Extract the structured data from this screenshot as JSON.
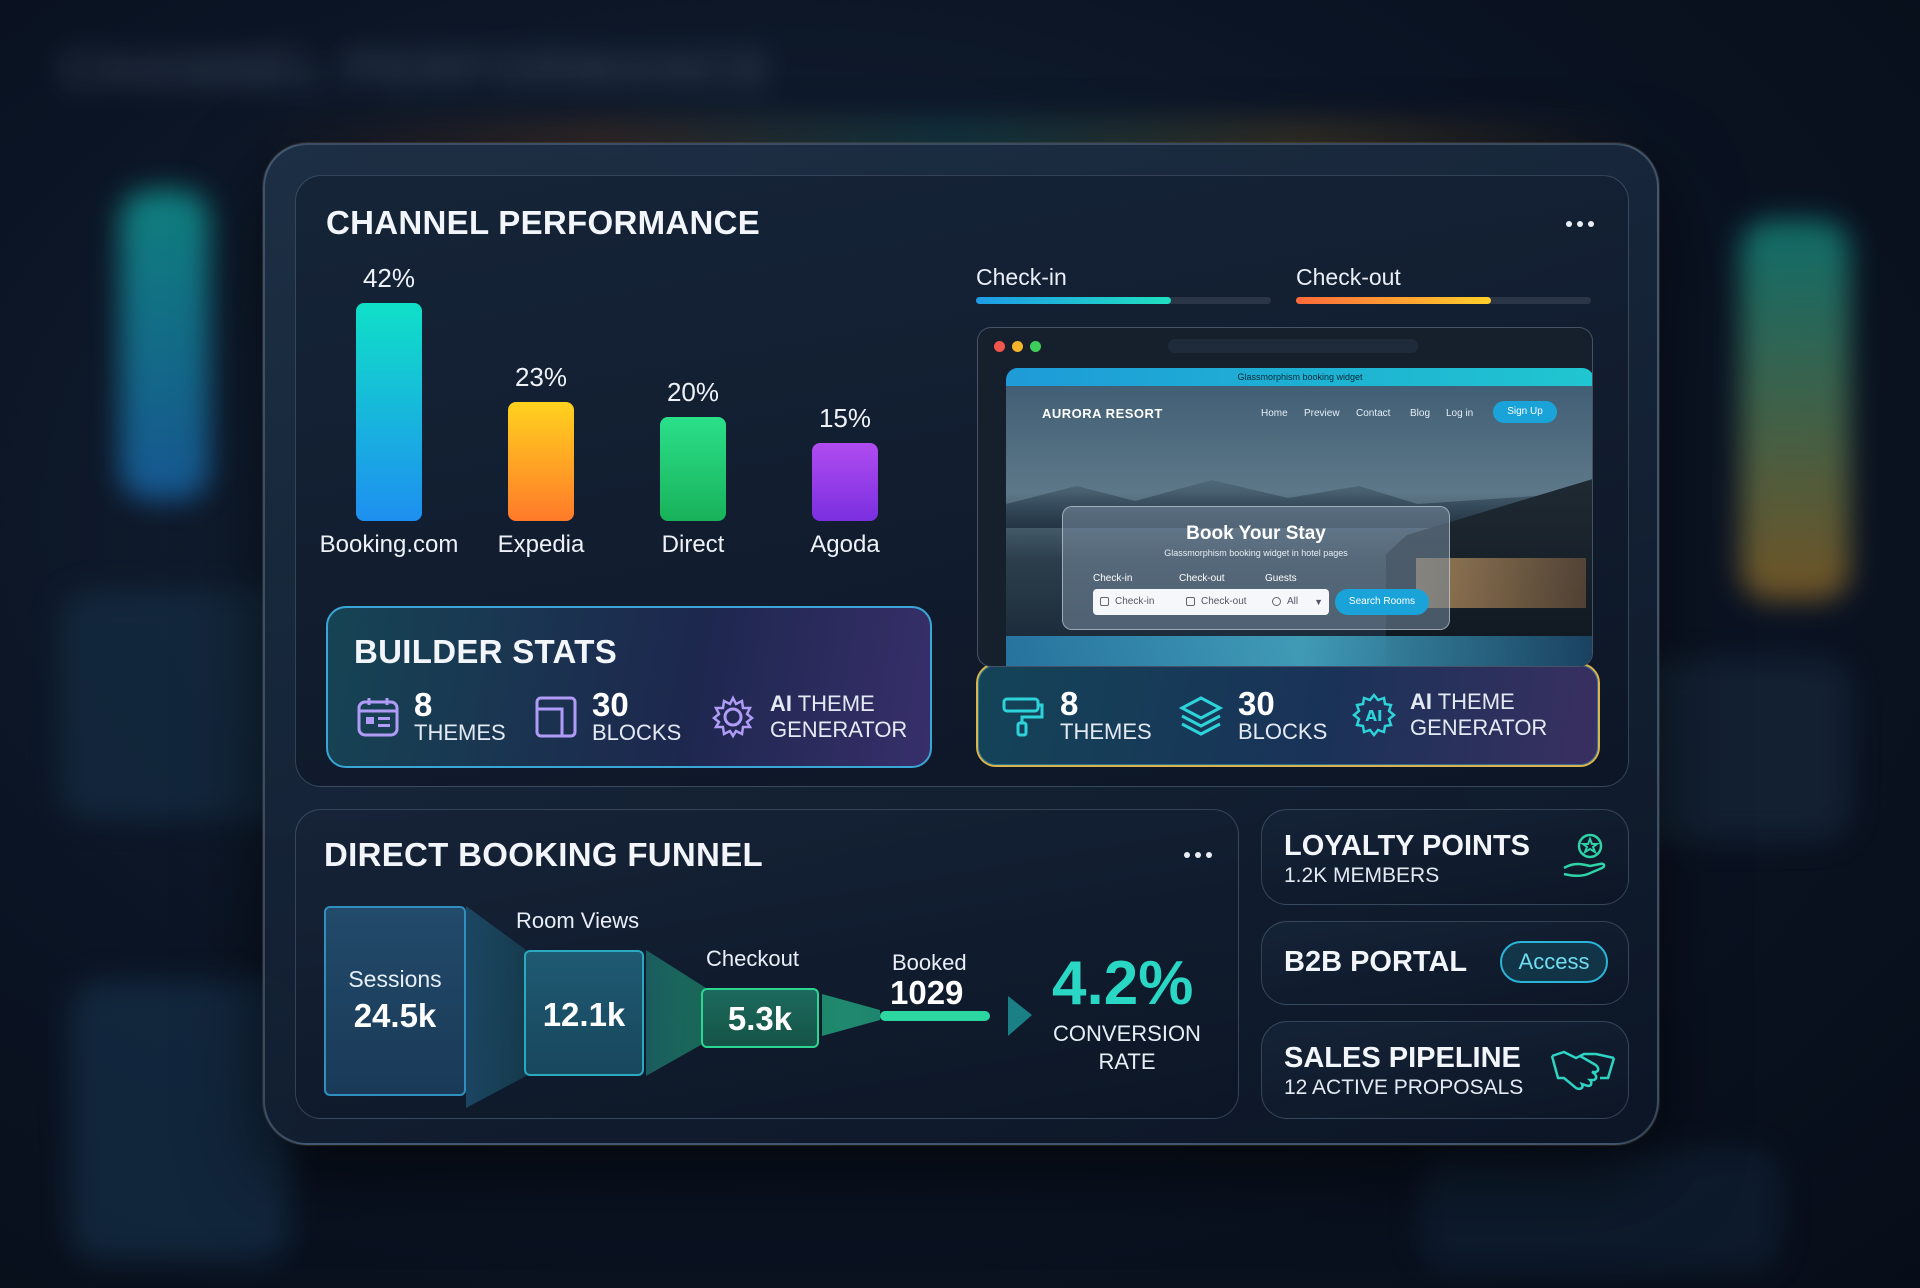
{
  "channel": {
    "title": "CHANNEL PERFORMANCE"
  },
  "chart_data": {
    "type": "bar",
    "categories": [
      "Booking.com",
      "Expedia",
      "Direct",
      "Agoda"
    ],
    "values": [
      42,
      23,
      20,
      15
    ],
    "value_labels": [
      "42%",
      "23%",
      "20%",
      "15%"
    ],
    "ylim": [
      0,
      42
    ],
    "colors": [
      [
        "#10e0c8",
        "#1e8ff0"
      ],
      [
        "#ffd21e",
        "#ff7a2a"
      ],
      [
        "#2be08a",
        "#18b25a"
      ],
      [
        "#b04cf0",
        "#7a2fe0"
      ]
    ]
  },
  "progress": {
    "checkin": {
      "label": "Check-in",
      "value": 0.66,
      "colors": [
        "#1e9be8",
        "#20e0c0"
      ]
    },
    "checkout": {
      "label": "Check-out",
      "value": 0.66,
      "colors": [
        "#ff6a3a",
        "#ffcf2a"
      ]
    }
  },
  "builder_stats": {
    "title": "BUILDER STATS",
    "themes_num": "8",
    "themes_label": "THEMES",
    "blocks_num": "30",
    "blocks_label": "BLOCKS",
    "ai_bold": "AI",
    "ai_rest": "THEME",
    "ai_line2": "GENERATOR"
  },
  "builder_stats_2": {
    "themes_num": "8",
    "themes_label": "THEMES",
    "blocks_num": "30",
    "blocks_label": "BLOCKS",
    "ai_bold": "AI",
    "ai_rest": "THEME",
    "ai_line2": "GENERATOR"
  },
  "site": {
    "topbar": "Glassmorphism booking widget",
    "logo": "AURORA RESORT",
    "nav": [
      "Home",
      "Preview",
      "Contact",
      "Blog",
      "Log in"
    ],
    "signup": "Sign Up",
    "widget_title": "Book Your Stay",
    "widget_sub": "Glassmorphism booking widget in hotel pages",
    "checkin_label": "Check-in",
    "checkin_ph": "Check-in",
    "checkout_label": "Check-out",
    "checkout_ph": "Check-out",
    "guests_label": "Guests",
    "guests_value": "All",
    "search_btn": "Search Rooms"
  },
  "funnel": {
    "title": "DIRECT BOOKING FUNNEL",
    "sessions_label": "Sessions",
    "sessions_value": "24.5k",
    "views_label": "Room Views",
    "views_value": "12.1k",
    "checkout_label": "Checkout",
    "checkout_value": "5.3k",
    "booked_label": "Booked",
    "booked_value": "1029",
    "rate_value": "4.2%",
    "rate_label1": "CONVERSION",
    "rate_label2": "RATE"
  },
  "loyalty": {
    "title": "LOYALTY POINTS",
    "sub": "1.2K MEMBERS"
  },
  "b2b": {
    "title": "B2B PORTAL",
    "button": "Access"
  },
  "sales": {
    "title": "SALES PIPELINE",
    "sub": "12 ACTIVE PROPOSALS"
  }
}
